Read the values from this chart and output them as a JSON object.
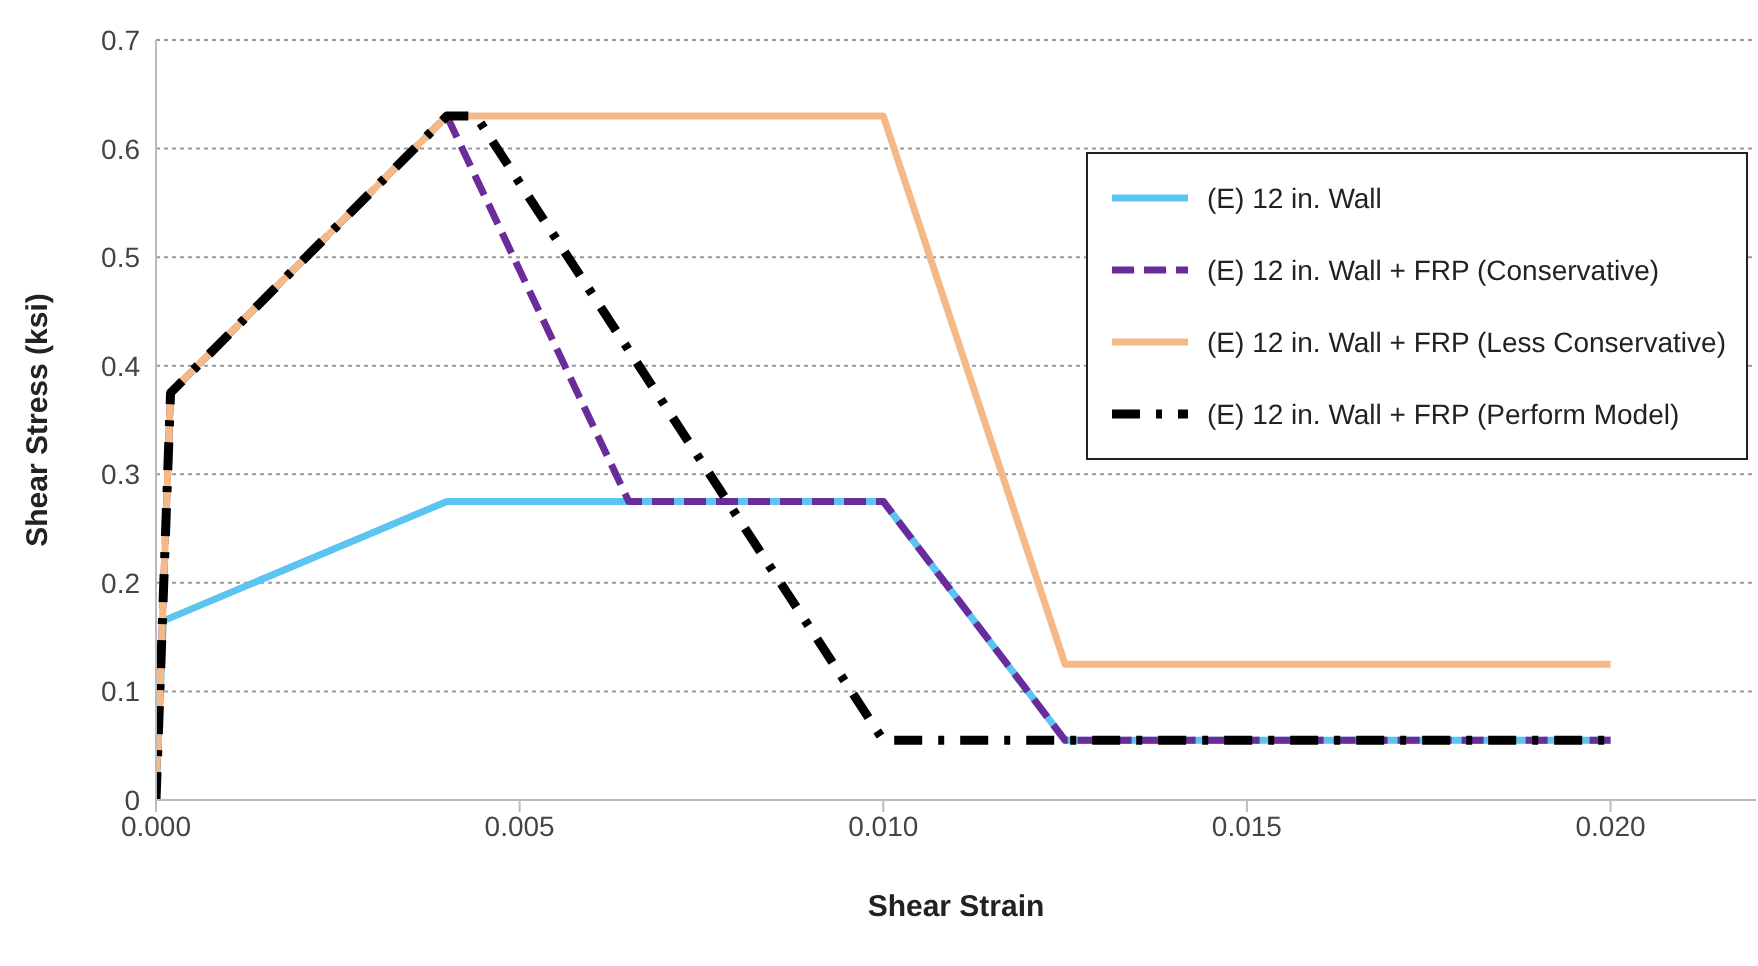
{
  "chart_data": {
    "type": "line",
    "xlabel": "Shear Strain",
    "ylabel": "Shear Stress (ksi)",
    "xlim": [
      0,
      0.022
    ],
    "xticks": [
      {
        "value": 0,
        "label": "0.000"
      },
      {
        "value": 0.005,
        "label": "0.005"
      },
      {
        "value": 0.01,
        "label": "0.010"
      },
      {
        "value": 0.015,
        "label": "0.015"
      },
      {
        "value": 0.02,
        "label": "0.020"
      }
    ],
    "ylim": [
      0,
      0.7
    ],
    "yticks": [
      0,
      0.1,
      0.2,
      0.3,
      0.4,
      0.5,
      0.6,
      0.7
    ],
    "grid": "y",
    "legend": "top right",
    "marker": "none",
    "series": [
      {
        "name": "(E) 12 in. Wall",
        "color": "#5bc4f0",
        "line_style": "solid",
        "x": [
          0,
          0.0001,
          0.004,
          0.01,
          0.0125,
          0.02
        ],
        "values": [
          0,
          0.165,
          0.275,
          0.275,
          0.055,
          0.055
        ]
      },
      {
        "name": "(E) 12 in. Wall + FRP (Conservative)",
        "color": "#6a2c9a",
        "line_style": "dashed",
        "x": [
          0,
          0.0002,
          0.004,
          0.0065,
          0.01,
          0.0125,
          0.02
        ],
        "values": [
          0,
          0.375,
          0.63,
          0.275,
          0.275,
          0.055,
          0.055
        ]
      },
      {
        "name": "(E) 12 in. Wall + FRP (Less Conservative)",
        "color": "#f5b887",
        "line_style": "solid",
        "x": [
          0,
          0.0002,
          0.004,
          0.01,
          0.0125,
          0.02
        ],
        "values": [
          0,
          0.375,
          0.63,
          0.63,
          0.125,
          0.125
        ]
      },
      {
        "name": "(E) 12 in. Wall + FRP (Perform Model)",
        "color": "#000000",
        "line_style": "dashdot",
        "x": [
          0,
          0.0002,
          0.004,
          0.0044,
          0.01,
          0.02
        ],
        "values": [
          0,
          0.375,
          0.63,
          0.63,
          0.055,
          0.055
        ]
      }
    ]
  }
}
